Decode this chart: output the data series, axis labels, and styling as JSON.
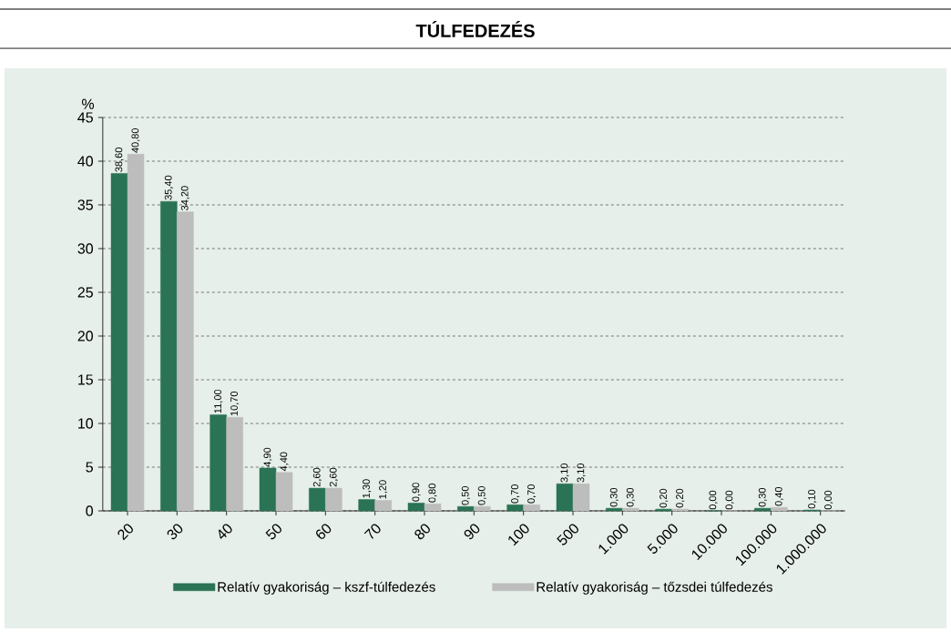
{
  "chart_data": {
    "type": "bar",
    "title": "TÚLFEDEZÉS",
    "ylabel": "%",
    "categories": [
      "20",
      "30",
      "40",
      "50",
      "60",
      "70",
      "80",
      "90",
      "100",
      "500",
      "1.000",
      "5.000",
      "10.000",
      "100.000",
      "1.000.000"
    ],
    "series": [
      {
        "name": "Relatív gyakoriság – kszf-túlfedezés",
        "color": "#2a7355",
        "values": [
          38.6,
          35.4,
          11.0,
          4.9,
          2.6,
          1.3,
          0.9,
          0.5,
          0.7,
          3.1,
          0.3,
          0.2,
          0.0,
          0.3,
          0.1
        ],
        "value_labels": [
          "38,60",
          "35,40",
          "11,00",
          "4,90",
          "2,60",
          "1,30",
          "0,90",
          "0,50",
          "0,70",
          "3,10",
          "0,30",
          "0,20",
          "0,00",
          "0,30",
          "0,10"
        ]
      },
      {
        "name": "Relatív gyakoriság – tőzsdei túlfedezés",
        "color": "#bdbdbd",
        "values": [
          40.8,
          34.2,
          10.7,
          4.4,
          2.6,
          1.2,
          0.8,
          0.5,
          0.7,
          3.1,
          0.3,
          0.2,
          0.0,
          0.4,
          0.0
        ],
        "value_labels": [
          "40,80",
          "34,20",
          "10,70",
          "4,40",
          "2,60",
          "1,20",
          "0,80",
          "0,50",
          "0,70",
          "3,10",
          "0,30",
          "0,20",
          "0,00",
          "0,40",
          "0,00"
        ]
      }
    ],
    "ylim": [
      0,
      45
    ],
    "yticks": [
      0,
      5,
      10,
      15,
      20,
      25,
      30,
      35,
      40,
      45
    ],
    "grid": "y",
    "legend": "bottom"
  }
}
